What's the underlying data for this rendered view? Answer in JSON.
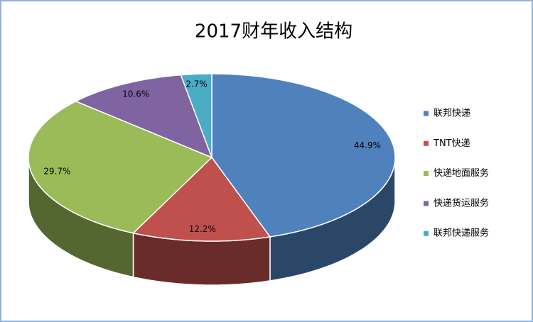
{
  "chart_data": {
    "type": "pie3d",
    "title": "2017财年收入结构",
    "categories": [
      "联邦快递",
      "TNT快递",
      "快递地面服务",
      "快递货运服务",
      "联邦快递服务"
    ],
    "values": [
      44.9,
      12.2,
      29.7,
      10.6,
      2.7
    ],
    "value_labels": [
      "44.9%",
      "12.2%",
      "29.7%",
      "10.6%",
      "2.7%"
    ],
    "colors": [
      "#4f81bd",
      "#c0504d",
      "#9bbb59",
      "#8064a2",
      "#4bacc6"
    ],
    "legend": "right"
  }
}
